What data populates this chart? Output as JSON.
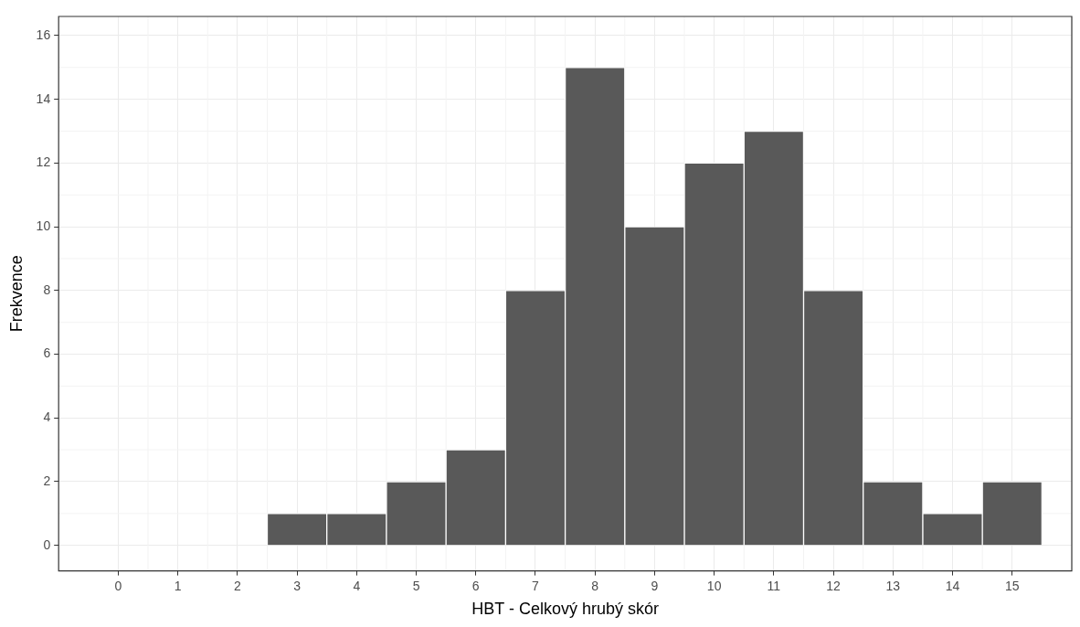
{
  "chart_data": {
    "type": "histogram",
    "xlabel": "HBT - Celkový hrubý skór",
    "ylabel": "Frekvence",
    "bins": [
      2.5,
      3.5,
      4.5,
      5.5,
      6.5,
      7.5,
      8.5,
      9.5,
      10.5,
      11.5,
      12.5,
      13.5,
      14.5,
      15.5
    ],
    "values": [
      1,
      1,
      2,
      3,
      8,
      15,
      10,
      12,
      13,
      8,
      2,
      1,
      2
    ],
    "color": "#595959",
    "xlim": [
      -1,
      16
    ],
    "xticks": [
      0,
      1,
      2,
      3,
      4,
      5,
      6,
      7,
      8,
      9,
      10,
      11,
      12,
      13,
      14,
      15
    ],
    "ylim": [
      -0.8,
      16.6
    ],
    "yticks": [
      0,
      2,
      4,
      6,
      8,
      10,
      12,
      14,
      16
    ],
    "grid": true
  }
}
